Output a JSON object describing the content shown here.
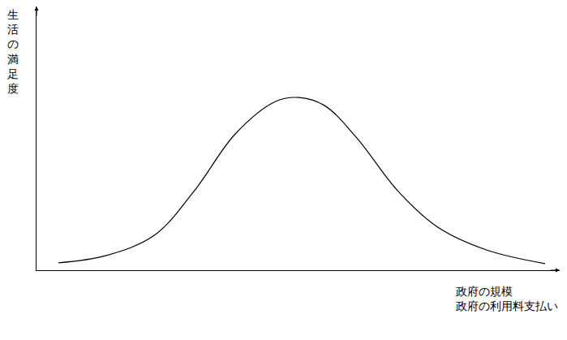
{
  "chart_data": {
    "type": "line",
    "y_label": "生活の満足度",
    "x_label": [
      "政府の規模",
      "政府の利用料支払い"
    ],
    "x": [
      4.2,
      13.2,
      22.5,
      30.2,
      38,
      45.7,
      50.1,
      55,
      61.2,
      69,
      76.7,
      86,
      97.2
    ],
    "values": [
      2.8,
      5.5,
      13.2,
      30.2,
      51.7,
      64,
      65.5,
      62.5,
      50.2,
      30.2,
      16.3,
      7.7,
      2.5
    ],
    "color": "#000000",
    "line_style": "smooth",
    "xlim": [
      0,
      100
    ],
    "ylim": [
      0,
      100
    ],
    "grid": false,
    "tick_labels": false
  }
}
